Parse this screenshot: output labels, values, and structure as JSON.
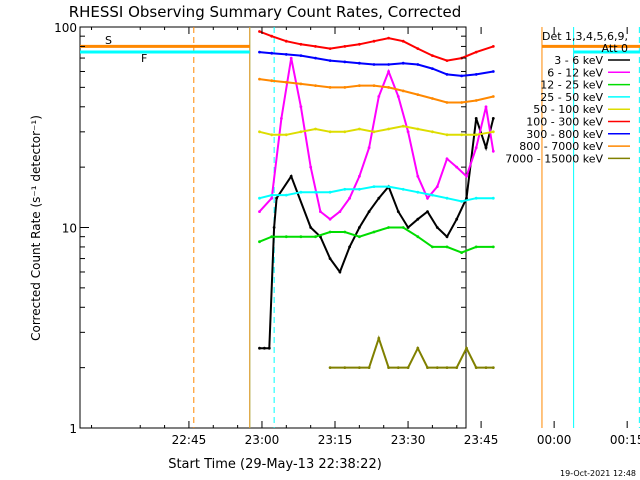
{
  "chart_data": {
    "type": "line",
    "title": "RHESSI Observing Summary Count Rates, Corrected",
    "xlabel": "Start Time (29-May-13 22:38:22)",
    "ylabel": "Corrected Count Rate (s⁻¹ detector⁻¹)",
    "x_range_minutes": [
      22.63,
      101.9
    ],
    "x_ticks": [
      {
        "label": "22:45",
        "m": 45
      },
      {
        "label": "23:00",
        "m": 60
      },
      {
        "label": "23:15",
        "m": 75
      },
      {
        "label": "23:30",
        "m": 90
      },
      {
        "label": "23:45",
        "m": 105
      },
      {
        "label": "00:00",
        "m": 120
      },
      {
        "label": "00:15",
        "m": 135
      }
    ],
    "y_scale": "log",
    "ylim": [
      1,
      100
    ],
    "y_tick_labels": [
      "1",
      "10",
      "100"
    ],
    "legend": {
      "header_lines": [
        "Det 1,3,4,5,6,9,",
        "Att 0"
      ],
      "placement": "top-right",
      "entries": [
        {
          "label": "3 - 6 keV",
          "color": "#000000"
        },
        {
          "label": "6 - 12 keV",
          "color": "#ff00ff"
        },
        {
          "label": "12 - 25 keV",
          "color": "#00dd00"
        },
        {
          "label": "25 - 50 keV",
          "color": "#00ffff"
        },
        {
          "label": "50 - 100 keV",
          "color": "#dddd00"
        },
        {
          "label": "100 - 300 keV",
          "color": "#ff0000"
        },
        {
          "label": "300 - 800 keV",
          "color": "#0000ff"
        },
        {
          "label": "800 - 7000 keV",
          "color": "#ff8800"
        },
        {
          "label": "7000 - 15000 keV",
          "color": "#808000"
        }
      ]
    },
    "annotations": [
      {
        "text": "S",
        "color": "#ff8800"
      },
      {
        "text": "F",
        "color": "#ff0000"
      }
    ],
    "orbit_markers_minutes": [
      {
        "kind": "night-start",
        "m": 57.5,
        "color": "#00ffff"
      },
      {
        "kind": "night-end",
        "m": 124.0,
        "color": "#00ffff"
      },
      {
        "kind": "night-dashed",
        "m": 62.5,
        "color": "#00ffff"
      },
      {
        "kind": "night-dashed",
        "m": 137.5,
        "color": "#00ffff"
      },
      {
        "kind": "saa-start",
        "m": 57.5,
        "color": "#ff8800"
      },
      {
        "kind": "saa-end",
        "m": 117.5,
        "color": "#ff8800"
      },
      {
        "kind": "saa-dashed",
        "m": 46.0,
        "color": "#ff8800"
      }
    ],
    "series": [
      {
        "name": "3 - 6 keV",
        "color": "#000000",
        "x": [
          59.5,
          60.5,
          61.5,
          62.5,
          63.0,
          66,
          70,
          72,
          74,
          76,
          78,
          80,
          82,
          84,
          86,
          88,
          90,
          92,
          94,
          96,
          98,
          100,
          102,
          104,
          106,
          107.5
        ],
        "y": [
          2.5,
          2.5,
          2.5,
          10,
          14,
          18,
          10,
          9,
          7,
          6,
          8,
          10,
          12,
          14,
          16,
          12,
          10,
          11,
          12,
          10,
          9,
          11,
          14,
          35,
          25,
          35
        ]
      },
      {
        "name": "6 - 12 keV",
        "color": "#ff00ff",
        "x": [
          59.5,
          62,
          64,
          66,
          68,
          70,
          72,
          74,
          76,
          78,
          80,
          82,
          84,
          86,
          88,
          90,
          92,
          94,
          96,
          98,
          100,
          102,
          104,
          106,
          107.5
        ],
        "y": [
          12,
          14,
          35,
          70,
          40,
          20,
          12,
          11,
          12,
          14,
          18,
          25,
          45,
          60,
          45,
          30,
          18,
          14,
          16,
          22,
          20,
          18,
          25,
          40,
          24
        ]
      },
      {
        "name": "12 - 25 keV",
        "color": "#00dd00",
        "x": [
          59.5,
          62,
          65,
          68,
          71,
          74,
          77,
          80,
          83,
          86,
          89,
          92,
          95,
          98,
          101,
          104,
          107.5
        ],
        "y": [
          8.5,
          9,
          9,
          9,
          9,
          9.5,
          9.5,
          9,
          9.5,
          10,
          10,
          9,
          8,
          8,
          7.5,
          8,
          8
        ]
      },
      {
        "name": "25 - 50 keV",
        "color": "#00ffff",
        "x": [
          59.5,
          62,
          65,
          68,
          71,
          74,
          77,
          80,
          83,
          86,
          89,
          92,
          95,
          98,
          101,
          104,
          107.5
        ],
        "y": [
          14,
          14.5,
          14.5,
          15,
          15,
          15,
          15.5,
          15.5,
          16,
          16,
          15.5,
          15,
          14.5,
          14,
          13.5,
          14,
          14
        ]
      },
      {
        "name": "50 - 100 keV",
        "color": "#dddd00",
        "x": [
          59.5,
          62,
          65,
          68,
          71,
          74,
          77,
          80,
          83,
          86,
          89,
          92,
          95,
          98,
          101,
          104,
          107.5
        ],
        "y": [
          30,
          29,
          29,
          30,
          31,
          30,
          30,
          31,
          30,
          31,
          32,
          31,
          30,
          29,
          29,
          29,
          30
        ]
      },
      {
        "name": "100 - 300 keV",
        "color": "#ff0000",
        "x": [
          59.5,
          62,
          65,
          68,
          71,
          74,
          77,
          80,
          83,
          86,
          89,
          92,
          95,
          98,
          101,
          104,
          107.5
        ],
        "y": [
          95,
          90,
          85,
          82,
          80,
          78,
          80,
          82,
          85,
          88,
          85,
          78,
          72,
          68,
          70,
          75,
          80
        ]
      },
      {
        "name": "300 - 800 keV",
        "color": "#0000ff",
        "x": [
          59.5,
          62,
          65,
          68,
          71,
          74,
          77,
          80,
          83,
          86,
          89,
          92,
          95,
          98,
          101,
          104,
          107.5
        ],
        "y": [
          75,
          74,
          73,
          72,
          70,
          68,
          67,
          66,
          65,
          65,
          66,
          65,
          62,
          58,
          57,
          58,
          60
        ]
      },
      {
        "name": "800 - 7000 keV",
        "color": "#ff8800",
        "x": [
          59.5,
          62,
          65,
          68,
          71,
          74,
          77,
          80,
          83,
          86,
          89,
          92,
          95,
          98,
          101,
          104,
          107.5
        ],
        "y": [
          55,
          54,
          53,
          52,
          51,
          50,
          50,
          51,
          51,
          50,
          48,
          46,
          44,
          42,
          42,
          43,
          45
        ]
      },
      {
        "name": "7000 - 15000 keV",
        "color": "#808000",
        "x": [
          74,
          77,
          80,
          82,
          84,
          86,
          88,
          90,
          92,
          94,
          96,
          98,
          100,
          102,
          104,
          106,
          107.5
        ],
        "y": [
          2,
          2,
          2,
          2,
          2.8,
          2,
          2,
          2,
          2.5,
          2,
          2,
          2,
          2,
          2.5,
          2,
          2,
          2
        ]
      }
    ],
    "flat_segments": [
      {
        "color": "#00ffff",
        "y": 75,
        "x_from": 22.63,
        "x_to": 57.5
      },
      {
        "color": "#ff8800",
        "y": 80,
        "x_from": 22.63,
        "x_to": 57.5
      },
      {
        "color": "#00ffff",
        "y": 75,
        "x_from": 124.0,
        "x_to": 140.9
      },
      {
        "color": "#ff8800",
        "y": 80,
        "x_from": 117.5,
        "x_to": 140.9
      }
    ]
  },
  "footer": {
    "timestamp": "19-Oct-2021 12:48"
  }
}
